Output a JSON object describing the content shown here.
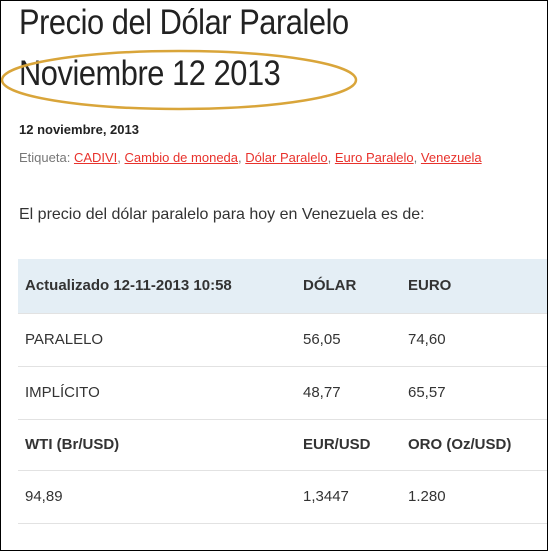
{
  "header": {
    "title": [
      "Precio del Dólar Paralelo",
      "Noviembre 12 2013"
    ],
    "date": "12 noviembre, 2013"
  },
  "tags": {
    "label": "Etiqueta:",
    "items": [
      "CADIVI",
      "Cambio de moneda",
      "Dólar Paralelo",
      "Euro Paralelo",
      "Venezuela"
    ],
    "separator": ","
  },
  "intro": "El precio del dólar paralelo para hoy en Venezuela es de:",
  "table": {
    "rows": [
      [
        "Actualizado 12-11-2013 10:58",
        "DÓLAR",
        "EURO"
      ],
      [
        "PARALELO",
        "56,05",
        "74,60"
      ],
      [
        "IMPLÍCITO",
        "48,77",
        "65,57"
      ],
      [
        "WTI (Br/USD)",
        "EUR/USD",
        "ORO (Oz/USD)"
      ],
      [
        "94,89",
        "1,3447",
        "1.280"
      ]
    ]
  }
}
